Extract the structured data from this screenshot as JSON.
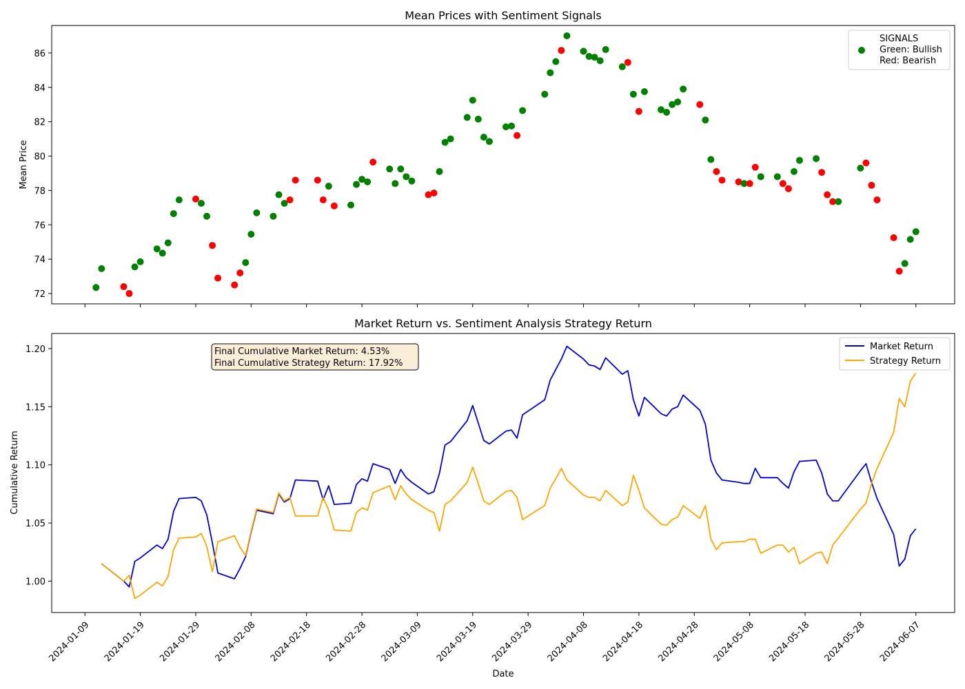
{
  "chart_data": [
    {
      "type": "scatter",
      "title": "Mean Prices with Sentiment Signals",
      "xlabel": "",
      "ylabel": "Mean Price",
      "ylim": [
        71.4,
        87.6
      ],
      "yticks": [
        72,
        74,
        76,
        78,
        80,
        82,
        84,
        86
      ],
      "xticks": [
        "2024-01-09",
        "2024-01-19",
        "2024-01-29",
        "2024-02-08",
        "2024-02-18",
        "2024-02-28",
        "2024-03-09",
        "2024-03-19",
        "2024-03-29",
        "2024-04-08",
        "2024-04-18",
        "2024-04-28",
        "2024-05-08",
        "2024-05-18",
        "2024-05-28",
        "2024-06-07"
      ],
      "xlim": [
        "2024-01-03",
        "2024-06-14"
      ],
      "legend": {
        "position": "top-right",
        "title": "SIGNALS",
        "line1": "Green: Bullish",
        "line2": "Red: Bearish"
      },
      "colors": {
        "bullish": "#008000",
        "bearish": "#ff0000"
      },
      "points": [
        {
          "x": "2024-01-11",
          "y": 72.35,
          "s": "bullish"
        },
        {
          "x": "2024-01-12",
          "y": 73.45,
          "s": "bullish"
        },
        {
          "x": "2024-01-16",
          "y": 72.4,
          "s": "bearish"
        },
        {
          "x": "2024-01-17",
          "y": 72.0,
          "s": "bearish"
        },
        {
          "x": "2024-01-18",
          "y": 73.55,
          "s": "bullish"
        },
        {
          "x": "2024-01-19",
          "y": 73.85,
          "s": "bullish"
        },
        {
          "x": "2024-01-22",
          "y": 74.6,
          "s": "bullish"
        },
        {
          "x": "2024-01-23",
          "y": 74.35,
          "s": "bullish"
        },
        {
          "x": "2024-01-24",
          "y": 74.95,
          "s": "bullish"
        },
        {
          "x": "2024-01-25",
          "y": 76.65,
          "s": "bullish"
        },
        {
          "x": "2024-01-26",
          "y": 77.45,
          "s": "bullish"
        },
        {
          "x": "2024-01-29",
          "y": 77.5,
          "s": "bearish"
        },
        {
          "x": "2024-01-30",
          "y": 77.25,
          "s": "bullish"
        },
        {
          "x": "2024-01-31",
          "y": 76.5,
          "s": "bullish"
        },
        {
          "x": "2024-02-01",
          "y": 74.8,
          "s": "bearish"
        },
        {
          "x": "2024-02-02",
          "y": 72.9,
          "s": "bearish"
        },
        {
          "x": "2024-02-05",
          "y": 72.5,
          "s": "bearish"
        },
        {
          "x": "2024-02-06",
          "y": 73.2,
          "s": "bearish"
        },
        {
          "x": "2024-02-07",
          "y": 73.8,
          "s": "bullish"
        },
        {
          "x": "2024-02-08",
          "y": 75.45,
          "s": "bullish"
        },
        {
          "x": "2024-02-09",
          "y": 76.7,
          "s": "bullish"
        },
        {
          "x": "2024-02-12",
          "y": 76.5,
          "s": "bullish"
        },
        {
          "x": "2024-02-13",
          "y": 77.75,
          "s": "bullish"
        },
        {
          "x": "2024-02-14",
          "y": 77.25,
          "s": "bullish"
        },
        {
          "x": "2024-02-15",
          "y": 77.45,
          "s": "bearish"
        },
        {
          "x": "2024-02-16",
          "y": 78.6,
          "s": "bearish"
        },
        {
          "x": "2024-02-20",
          "y": 78.6,
          "s": "bearish"
        },
        {
          "x": "2024-02-21",
          "y": 77.45,
          "s": "bearish"
        },
        {
          "x": "2024-02-22",
          "y": 78.25,
          "s": "bullish"
        },
        {
          "x": "2024-02-23",
          "y": 77.1,
          "s": "bearish"
        },
        {
          "x": "2024-02-26",
          "y": 77.15,
          "s": "bullish"
        },
        {
          "x": "2024-02-27",
          "y": 78.35,
          "s": "bullish"
        },
        {
          "x": "2024-02-28",
          "y": 78.65,
          "s": "bullish"
        },
        {
          "x": "2024-02-29",
          "y": 78.5,
          "s": "bullish"
        },
        {
          "x": "2024-03-01",
          "y": 79.65,
          "s": "bearish"
        },
        {
          "x": "2024-03-04",
          "y": 79.25,
          "s": "bullish"
        },
        {
          "x": "2024-03-05",
          "y": 78.4,
          "s": "bullish"
        },
        {
          "x": "2024-03-06",
          "y": 79.25,
          "s": "bullish"
        },
        {
          "x": "2024-03-07",
          "y": 78.8,
          "s": "bullish"
        },
        {
          "x": "2024-03-08",
          "y": 78.55,
          "s": "bullish"
        },
        {
          "x": "2024-03-11",
          "y": 77.75,
          "s": "bearish"
        },
        {
          "x": "2024-03-12",
          "y": 77.85,
          "s": "bearish"
        },
        {
          "x": "2024-03-13",
          "y": 79.1,
          "s": "bullish"
        },
        {
          "x": "2024-03-14",
          "y": 80.8,
          "s": "bullish"
        },
        {
          "x": "2024-03-15",
          "y": 81.0,
          "s": "bullish"
        },
        {
          "x": "2024-03-18",
          "y": 82.25,
          "s": "bullish"
        },
        {
          "x": "2024-03-19",
          "y": 83.25,
          "s": "bullish"
        },
        {
          "x": "2024-03-20",
          "y": 82.15,
          "s": "bullish"
        },
        {
          "x": "2024-03-21",
          "y": 81.1,
          "s": "bullish"
        },
        {
          "x": "2024-03-22",
          "y": 80.85,
          "s": "bullish"
        },
        {
          "x": "2024-03-25",
          "y": 81.7,
          "s": "bullish"
        },
        {
          "x": "2024-03-26",
          "y": 81.75,
          "s": "bullish"
        },
        {
          "x": "2024-03-27",
          "y": 81.2,
          "s": "bearish"
        },
        {
          "x": "2024-03-28",
          "y": 82.65,
          "s": "bullish"
        },
        {
          "x": "2024-04-01",
          "y": 83.6,
          "s": "bullish"
        },
        {
          "x": "2024-04-02",
          "y": 84.85,
          "s": "bullish"
        },
        {
          "x": "2024-04-03",
          "y": 85.5,
          "s": "bullish"
        },
        {
          "x": "2024-04-04",
          "y": 86.15,
          "s": "bearish"
        },
        {
          "x": "2024-04-05",
          "y": 87.0,
          "s": "bullish"
        },
        {
          "x": "2024-04-08",
          "y": 86.1,
          "s": "bullish"
        },
        {
          "x": "2024-04-09",
          "y": 85.8,
          "s": "bullish"
        },
        {
          "x": "2024-04-10",
          "y": 85.75,
          "s": "bullish"
        },
        {
          "x": "2024-04-11",
          "y": 85.55,
          "s": "bullish"
        },
        {
          "x": "2024-04-12",
          "y": 86.2,
          "s": "bullish"
        },
        {
          "x": "2024-04-15",
          "y": 85.2,
          "s": "bullish"
        },
        {
          "x": "2024-04-16",
          "y": 85.45,
          "s": "bearish"
        },
        {
          "x": "2024-04-17",
          "y": 83.6,
          "s": "bullish"
        },
        {
          "x": "2024-04-18",
          "y": 82.6,
          "s": "bearish"
        },
        {
          "x": "2024-04-19",
          "y": 83.75,
          "s": "bullish"
        },
        {
          "x": "2024-04-22",
          "y": 82.7,
          "s": "bullish"
        },
        {
          "x": "2024-04-23",
          "y": 82.55,
          "s": "bullish"
        },
        {
          "x": "2024-04-24",
          "y": 83.0,
          "s": "bullish"
        },
        {
          "x": "2024-04-25",
          "y": 83.15,
          "s": "bullish"
        },
        {
          "x": "2024-04-26",
          "y": 83.9,
          "s": "bullish"
        },
        {
          "x": "2024-04-29",
          "y": 83.0,
          "s": "bearish"
        },
        {
          "x": "2024-04-30",
          "y": 82.1,
          "s": "bullish"
        },
        {
          "x": "2024-05-01",
          "y": 79.8,
          "s": "bullish"
        },
        {
          "x": "2024-05-02",
          "y": 79.1,
          "s": "bearish"
        },
        {
          "x": "2024-05-03",
          "y": 78.6,
          "s": "bearish"
        },
        {
          "x": "2024-05-06",
          "y": 78.5,
          "s": "bearish"
        },
        {
          "x": "2024-05-07",
          "y": 78.4,
          "s": "bullish"
        },
        {
          "x": "2024-05-08",
          "y": 78.4,
          "s": "bearish"
        },
        {
          "x": "2024-05-09",
          "y": 79.35,
          "s": "bearish"
        },
        {
          "x": "2024-05-10",
          "y": 78.8,
          "s": "bullish"
        },
        {
          "x": "2024-05-13",
          "y": 78.8,
          "s": "bullish"
        },
        {
          "x": "2024-05-14",
          "y": 78.4,
          "s": "bearish"
        },
        {
          "x": "2024-05-15",
          "y": 78.1,
          "s": "bearish"
        },
        {
          "x": "2024-05-16",
          "y": 79.1,
          "s": "bullish"
        },
        {
          "x": "2024-05-17",
          "y": 79.75,
          "s": "bullish"
        },
        {
          "x": "2024-05-20",
          "y": 79.85,
          "s": "bullish"
        },
        {
          "x": "2024-05-21",
          "y": 79.05,
          "s": "bearish"
        },
        {
          "x": "2024-05-22",
          "y": 77.75,
          "s": "bearish"
        },
        {
          "x": "2024-05-23",
          "y": 77.35,
          "s": "bearish"
        },
        {
          "x": "2024-05-24",
          "y": 77.35,
          "s": "bullish"
        },
        {
          "x": "2024-05-28",
          "y": 79.3,
          "s": "bullish"
        },
        {
          "x": "2024-05-29",
          "y": 79.6,
          "s": "bearish"
        },
        {
          "x": "2024-05-30",
          "y": 78.3,
          "s": "bearish"
        },
        {
          "x": "2024-05-31",
          "y": 77.45,
          "s": "bearish"
        },
        {
          "x": "2024-06-03",
          "y": 75.25,
          "s": "bearish"
        },
        {
          "x": "2024-06-04",
          "y": 73.3,
          "s": "bearish"
        },
        {
          "x": "2024-06-05",
          "y": 73.75,
          "s": "bullish"
        },
        {
          "x": "2024-06-06",
          "y": 75.15,
          "s": "bullish"
        },
        {
          "x": "2024-06-07",
          "y": 75.6,
          "s": "bullish"
        }
      ]
    },
    {
      "type": "line",
      "title": "Market Return vs. Sentiment Analysis Strategy Return",
      "xlabel": "Date",
      "ylabel": "Cumulative Return",
      "ylim": [
        0.973,
        1.213
      ],
      "yticks": [
        1.0,
        1.05,
        1.1,
        1.15,
        1.2
      ],
      "ytick_labels": [
        "1.00",
        "1.05",
        "1.10",
        "1.15",
        "1.20"
      ],
      "xticks": [
        "2024-01-09",
        "2024-01-19",
        "2024-01-29",
        "2024-02-08",
        "2024-02-18",
        "2024-02-28",
        "2024-03-09",
        "2024-03-19",
        "2024-03-29",
        "2024-04-08",
        "2024-04-18",
        "2024-04-28",
        "2024-05-08",
        "2024-05-18",
        "2024-05-28",
        "2024-06-07"
      ],
      "xlim": [
        "2024-01-03",
        "2024-06-14"
      ],
      "legend_position": "top-right",
      "annotation": {
        "line1": "Final Cumulative Market Return: 4.53%",
        "line2": "Final Cumulative Strategy Return: 17.92%"
      },
      "x": [
        "2024-01-12",
        "2024-01-16",
        "2024-01-17",
        "2024-01-18",
        "2024-01-19",
        "2024-01-22",
        "2024-01-23",
        "2024-01-24",
        "2024-01-25",
        "2024-01-26",
        "2024-01-29",
        "2024-01-30",
        "2024-01-31",
        "2024-02-01",
        "2024-02-02",
        "2024-02-05",
        "2024-02-06",
        "2024-02-07",
        "2024-02-08",
        "2024-02-09",
        "2024-02-12",
        "2024-02-13",
        "2024-02-14",
        "2024-02-15",
        "2024-02-16",
        "2024-02-20",
        "2024-02-21",
        "2024-02-22",
        "2024-02-23",
        "2024-02-26",
        "2024-02-27",
        "2024-02-28",
        "2024-02-29",
        "2024-03-01",
        "2024-03-04",
        "2024-03-05",
        "2024-03-06",
        "2024-03-07",
        "2024-03-08",
        "2024-03-11",
        "2024-03-12",
        "2024-03-13",
        "2024-03-14",
        "2024-03-15",
        "2024-03-18",
        "2024-03-19",
        "2024-03-20",
        "2024-03-21",
        "2024-03-22",
        "2024-03-25",
        "2024-03-26",
        "2024-03-27",
        "2024-03-28",
        "2024-04-01",
        "2024-04-02",
        "2024-04-03",
        "2024-04-04",
        "2024-04-05",
        "2024-04-08",
        "2024-04-09",
        "2024-04-10",
        "2024-04-11",
        "2024-04-12",
        "2024-04-15",
        "2024-04-16",
        "2024-04-17",
        "2024-04-18",
        "2024-04-19",
        "2024-04-22",
        "2024-04-23",
        "2024-04-24",
        "2024-04-25",
        "2024-04-26",
        "2024-04-29",
        "2024-04-30",
        "2024-05-01",
        "2024-05-02",
        "2024-05-03",
        "2024-05-06",
        "2024-05-07",
        "2024-05-08",
        "2024-05-09",
        "2024-05-10",
        "2024-05-13",
        "2024-05-14",
        "2024-05-15",
        "2024-05-16",
        "2024-05-17",
        "2024-05-20",
        "2024-05-21",
        "2024-05-22",
        "2024-05-23",
        "2024-05-24",
        "2024-05-28",
        "2024-05-29",
        "2024-05-30",
        "2024-05-31",
        "2024-06-03",
        "2024-06-04",
        "2024-06-05",
        "2024-06-06",
        "2024-06-07"
      ],
      "series": [
        {
          "name": "Market Return",
          "color": "#0000cc",
          "values": [
            1.015,
            1.0,
            0.995,
            1.017,
            1.02,
            1.031,
            1.028,
            1.036,
            1.06,
            1.071,
            1.072,
            1.069,
            1.057,
            1.033,
            1.007,
            1.002,
            1.011,
            1.021,
            1.042,
            1.061,
            1.058,
            1.075,
            1.068,
            1.071,
            1.087,
            1.086,
            1.07,
            1.082,
            1.066,
            1.067,
            1.083,
            1.088,
            1.086,
            1.101,
            1.096,
            1.084,
            1.096,
            1.089,
            1.085,
            1.075,
            1.077,
            1.093,
            1.117,
            1.12,
            1.138,
            1.151,
            1.136,
            1.121,
            1.118,
            1.129,
            1.13,
            1.123,
            1.143,
            1.156,
            1.173,
            1.182,
            1.191,
            1.202,
            1.191,
            1.186,
            1.185,
            1.182,
            1.192,
            1.178,
            1.181,
            1.156,
            1.142,
            1.158,
            1.144,
            1.142,
            1.148,
            1.15,
            1.16,
            1.147,
            1.135,
            1.104,
            1.093,
            1.087,
            1.085,
            1.084,
            1.084,
            1.097,
            1.089,
            1.089,
            1.084,
            1.08,
            1.094,
            1.103,
            1.104,
            1.093,
            1.075,
            1.069,
            1.069,
            1.095,
            1.101,
            1.085,
            1.071,
            1.04,
            1.013,
            1.019,
            1.039,
            1.045
          ]
        },
        {
          "name": "Strategy Return",
          "color": "#ffa500",
          "values": [
            1.015,
            1.0,
            1.005,
            0.985,
            0.988,
            0.999,
            0.996,
            1.004,
            1.027,
            1.037,
            1.038,
            1.041,
            1.03,
            1.008,
            1.034,
            1.039,
            1.029,
            1.022,
            1.043,
            1.062,
            1.059,
            1.076,
            1.069,
            1.072,
            1.056,
            1.056,
            1.072,
            1.061,
            1.044,
            1.043,
            1.059,
            1.063,
            1.061,
            1.076,
            1.082,
            1.07,
            1.082,
            1.075,
            1.07,
            1.061,
            1.059,
            1.043,
            1.066,
            1.069,
            1.085,
            1.098,
            1.084,
            1.069,
            1.066,
            1.077,
            1.078,
            1.072,
            1.053,
            1.065,
            1.08,
            1.088,
            1.097,
            1.087,
            1.074,
            1.072,
            1.072,
            1.069,
            1.078,
            1.065,
            1.068,
            1.091,
            1.078,
            1.063,
            1.049,
            1.048,
            1.053,
            1.055,
            1.065,
            1.054,
            1.065,
            1.036,
            1.027,
            1.033,
            1.034,
            1.034,
            1.036,
            1.036,
            1.024,
            1.031,
            1.031,
            1.025,
            1.029,
            1.015,
            1.024,
            1.025,
            1.015,
            1.031,
            1.037,
            1.062,
            1.067,
            1.084,
            1.097,
            1.128,
            1.157,
            1.15,
            1.172,
            1.179
          ]
        }
      ]
    }
  ]
}
